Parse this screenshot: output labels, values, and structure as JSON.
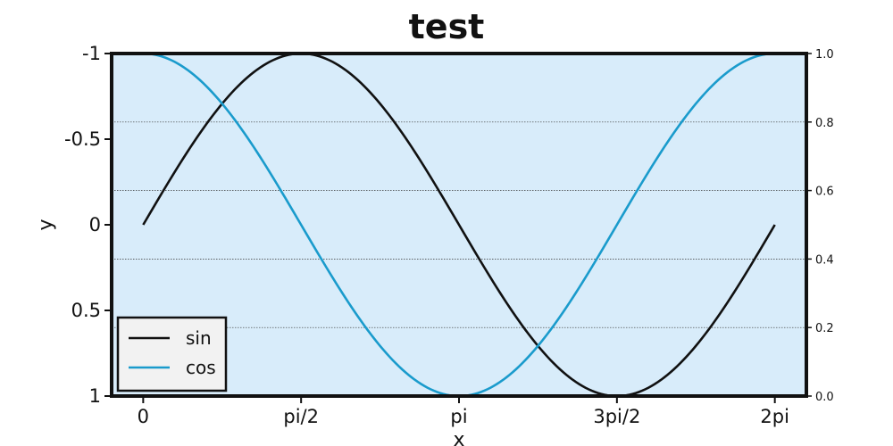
{
  "chart_data": {
    "type": "line",
    "title": "test",
    "xlabel": "x",
    "ylabel": "y",
    "xlim": [
      -0.314,
      6.597
    ],
    "ylim": [
      1.0,
      -1.0
    ],
    "x_ticks": [
      {
        "value": 0,
        "label": "0"
      },
      {
        "value": 1.5708,
        "label": "pi/2"
      },
      {
        "value": 3.1416,
        "label": "pi"
      },
      {
        "value": 4.7124,
        "label": "3pi/2"
      },
      {
        "value": 6.2832,
        "label": "2pi"
      }
    ],
    "y_ticks": [
      {
        "value": -1,
        "label": "-1"
      },
      {
        "value": -0.5,
        "label": "-0.5"
      },
      {
        "value": 0,
        "label": "0"
      },
      {
        "value": 0.5,
        "label": "0.5"
      },
      {
        "value": 1,
        "label": "1"
      }
    ],
    "y2_ticks": [
      {
        "value": 0.0,
        "label": "0.0"
      },
      {
        "value": 0.2,
        "label": "0.2"
      },
      {
        "value": 0.4,
        "label": "0.4"
      },
      {
        "value": 0.6,
        "label": "0.6"
      },
      {
        "value": 0.8,
        "label": "0.8"
      },
      {
        "value": 1.0,
        "label": "1.0"
      }
    ],
    "y2lim": [
      0,
      1
    ],
    "grid": "horizontal dotted lines at right-axis ticks",
    "legend_position": "lower-left",
    "background_color": "#d8ecfa",
    "series": [
      {
        "name": "sin",
        "color": "#111111",
        "x": [
          0,
          0.3307,
          0.6614,
          0.9921,
          1.3228,
          1.6535,
          1.9842,
          2.3149,
          2.6456,
          2.9762,
          3.3069,
          3.6376,
          3.9683,
          4.299,
          4.6297,
          4.9604,
          5.2911,
          5.6218,
          5.9525,
          6.2832
        ],
        "y": [
          0,
          -0.3247,
          -0.6142,
          -0.8372,
          -0.9694,
          -0.9966,
          -0.9158,
          -0.7357,
          -0.4759,
          -0.1646,
          0.1646,
          0.4759,
          0.7357,
          0.9158,
          0.9966,
          0.9694,
          0.8372,
          0.6142,
          0.3247,
          0
        ]
      },
      {
        "name": "cos",
        "color": "#1a9bcc",
        "x": [
          0,
          0.3307,
          0.6614,
          0.9921,
          1.3228,
          1.6535,
          1.9842,
          2.3149,
          2.6456,
          2.9762,
          3.3069,
          3.6376,
          3.9683,
          4.299,
          4.6297,
          4.9604,
          5.2911,
          5.6218,
          5.9525,
          6.2832
        ],
        "y": [
          -1,
          -0.9458,
          -0.7891,
          -0.5469,
          -0.2455,
          0.0826,
          0.4017,
          0.6773,
          0.8795,
          0.9864,
          0.9864,
          0.8795,
          0.6773,
          0.4017,
          0.0826,
          -0.2455,
          -0.5469,
          -0.7891,
          -0.9458,
          -1
        ]
      }
    ]
  }
}
